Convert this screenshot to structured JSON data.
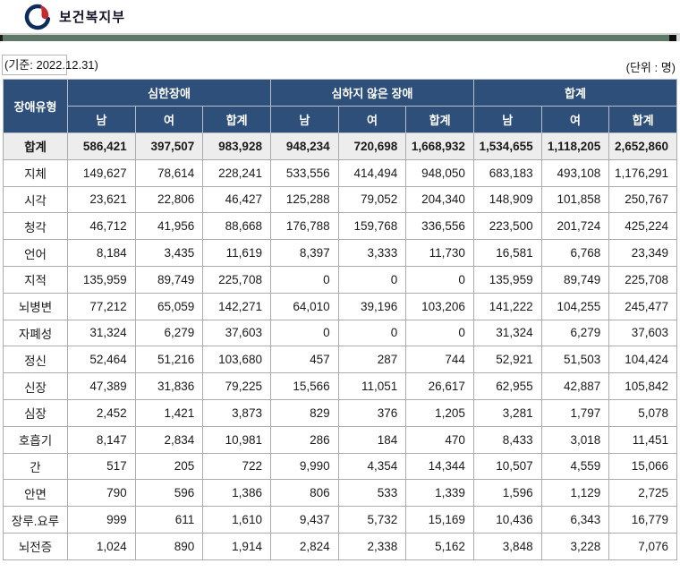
{
  "header": {
    "agency_name": "보건복지부",
    "logo_icon": "taegeuk-government-emblem"
  },
  "meta": {
    "reference_date_label": "(기준: 2022.12.31)",
    "unit_label": "(단위 : 명)"
  },
  "colors": {
    "table_header_navy": "#2e4f7a",
    "divider_green": "#5e7767",
    "total_row_bg": "#ededed",
    "logo_navy": "#0e2b5c",
    "logo_red": "#c42a2e",
    "cell_border_gray": "#acacac"
  },
  "table": {
    "type": "table",
    "row_header": "장애유형",
    "groups": [
      {
        "label": "심한장애",
        "columns": [
          "남",
          "여",
          "합계"
        ]
      },
      {
        "label": "심하지 않은 장애",
        "columns": [
          "남",
          "여",
          "합계"
        ]
      },
      {
        "label": "합계",
        "columns": [
          "남",
          "여",
          "합계"
        ]
      }
    ],
    "rows": [
      {
        "type": "합계",
        "is_total": true,
        "values": [
          "586,421",
          "397,507",
          "983,928",
          "948,234",
          "720,698",
          "1,668,932",
          "1,534,655",
          "1,118,205",
          "2,652,860"
        ]
      },
      {
        "type": "지체",
        "is_total": false,
        "values": [
          "149,627",
          "78,614",
          "228,241",
          "533,556",
          "414,494",
          "948,050",
          "683,183",
          "493,108",
          "1,176,291"
        ]
      },
      {
        "type": "시각",
        "is_total": false,
        "values": [
          "23,621",
          "22,806",
          "46,427",
          "125,288",
          "79,052",
          "204,340",
          "148,909",
          "101,858",
          "250,767"
        ]
      },
      {
        "type": "청각",
        "is_total": false,
        "values": [
          "46,712",
          "41,956",
          "88,668",
          "176,788",
          "159,768",
          "336,556",
          "223,500",
          "201,724",
          "425,224"
        ]
      },
      {
        "type": "언어",
        "is_total": false,
        "values": [
          "8,184",
          "3,435",
          "11,619",
          "8,397",
          "3,333",
          "11,730",
          "16,581",
          "6,768",
          "23,349"
        ]
      },
      {
        "type": "지적",
        "is_total": false,
        "values": [
          "135,959",
          "89,749",
          "225,708",
          "0",
          "0",
          "0",
          "135,959",
          "89,749",
          "225,708"
        ]
      },
      {
        "type": "뇌병변",
        "is_total": false,
        "values": [
          "77,212",
          "65,059",
          "142,271",
          "64,010",
          "39,196",
          "103,206",
          "141,222",
          "104,255",
          "245,477"
        ]
      },
      {
        "type": "자폐성",
        "is_total": false,
        "values": [
          "31,324",
          "6,279",
          "37,603",
          "0",
          "0",
          "0",
          "31,324",
          "6,279",
          "37,603"
        ]
      },
      {
        "type": "정신",
        "is_total": false,
        "values": [
          "52,464",
          "51,216",
          "103,680",
          "457",
          "287",
          "744",
          "52,921",
          "51,503",
          "104,424"
        ]
      },
      {
        "type": "신장",
        "is_total": false,
        "values": [
          "47,389",
          "31,836",
          "79,225",
          "15,566",
          "11,051",
          "26,617",
          "62,955",
          "42,887",
          "105,842"
        ]
      },
      {
        "type": "심장",
        "is_total": false,
        "values": [
          "2,452",
          "1,421",
          "3,873",
          "829",
          "376",
          "1,205",
          "3,281",
          "1,797",
          "5,078"
        ]
      },
      {
        "type": "호흡기",
        "is_total": false,
        "values": [
          "8,147",
          "2,834",
          "10,981",
          "286",
          "184",
          "470",
          "8,433",
          "3,018",
          "11,451"
        ]
      },
      {
        "type": "간",
        "is_total": false,
        "values": [
          "517",
          "205",
          "722",
          "9,990",
          "4,354",
          "14,344",
          "10,507",
          "4,559",
          "15,066"
        ]
      },
      {
        "type": "안면",
        "is_total": false,
        "values": [
          "790",
          "596",
          "1,386",
          "806",
          "533",
          "1,339",
          "1,596",
          "1,129",
          "2,725"
        ]
      },
      {
        "type": "장루.요루",
        "is_total": false,
        "values": [
          "999",
          "611",
          "1,610",
          "9,437",
          "5,732",
          "15,169",
          "10,436",
          "6,343",
          "16,779"
        ]
      },
      {
        "type": "뇌전증",
        "is_total": false,
        "values": [
          "1,024",
          "890",
          "1,914",
          "2,824",
          "2,338",
          "5,162",
          "3,848",
          "3,228",
          "7,076"
        ]
      }
    ]
  }
}
